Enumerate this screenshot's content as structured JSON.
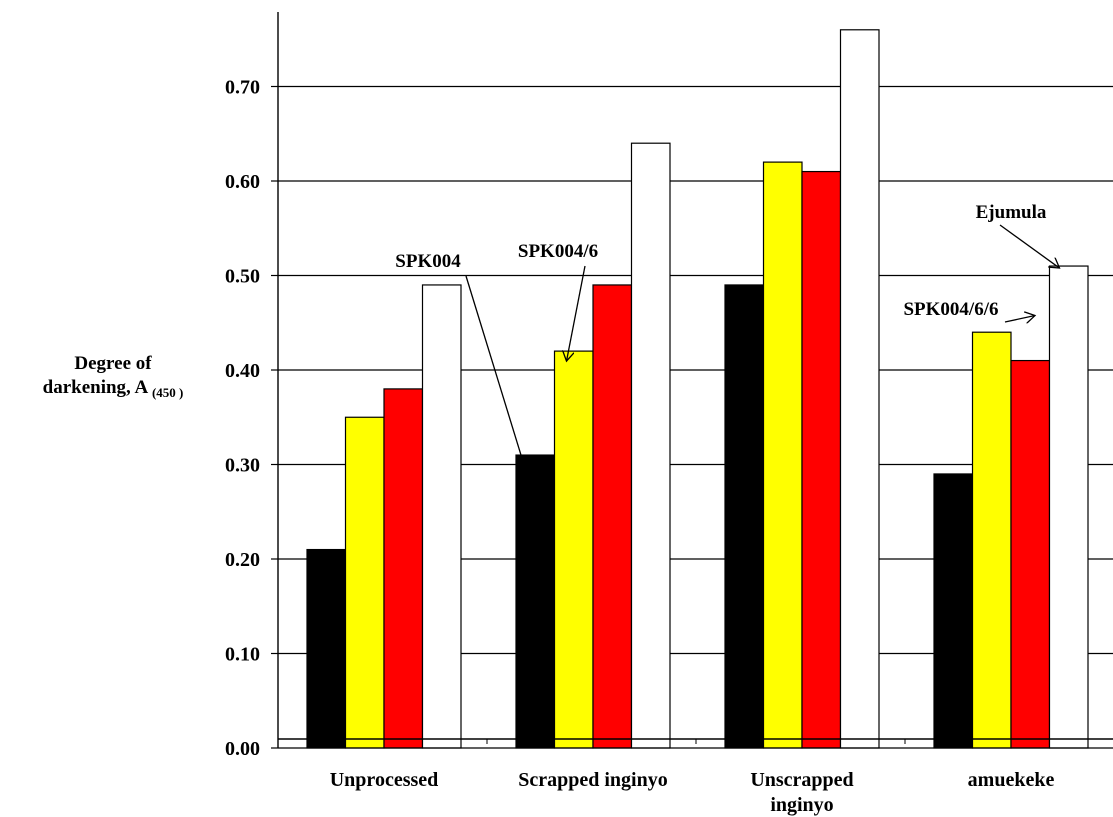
{
  "chart_data": {
    "type": "bar",
    "ylabel_line1": "Degree of",
    "ylabel_line2": "darkening, A",
    "ylabel_sub": "(450 )",
    "ylim": [
      0,
      0.8
    ],
    "yticks": [
      "0.00",
      "0.10",
      "0.20",
      "0.30",
      "0.40",
      "0.50",
      "0.60",
      "0.70"
    ],
    "grid": true,
    "categories": [
      [
        "Unprocessed"
      ],
      [
        "Scrapped inginyo"
      ],
      [
        "Unscrapped",
        "inginyo"
      ],
      [
        "amuekeke"
      ]
    ],
    "series": [
      {
        "name": "SPK004",
        "color": "#000000",
        "values": [
          0.21,
          0.31,
          0.49,
          0.29
        ]
      },
      {
        "name": "SPK004/6",
        "color": "#ffff00",
        "values": [
          0.35,
          0.42,
          0.62,
          0.44
        ]
      },
      {
        "name": "SPK004/6/6",
        "color": "#ff0000",
        "values": [
          0.38,
          0.49,
          0.61,
          0.41
        ]
      },
      {
        "name": "Ejumula",
        "color": "#ffffff",
        "values": [
          0.49,
          0.64,
          0.76,
          0.51
        ]
      }
    ]
  }
}
